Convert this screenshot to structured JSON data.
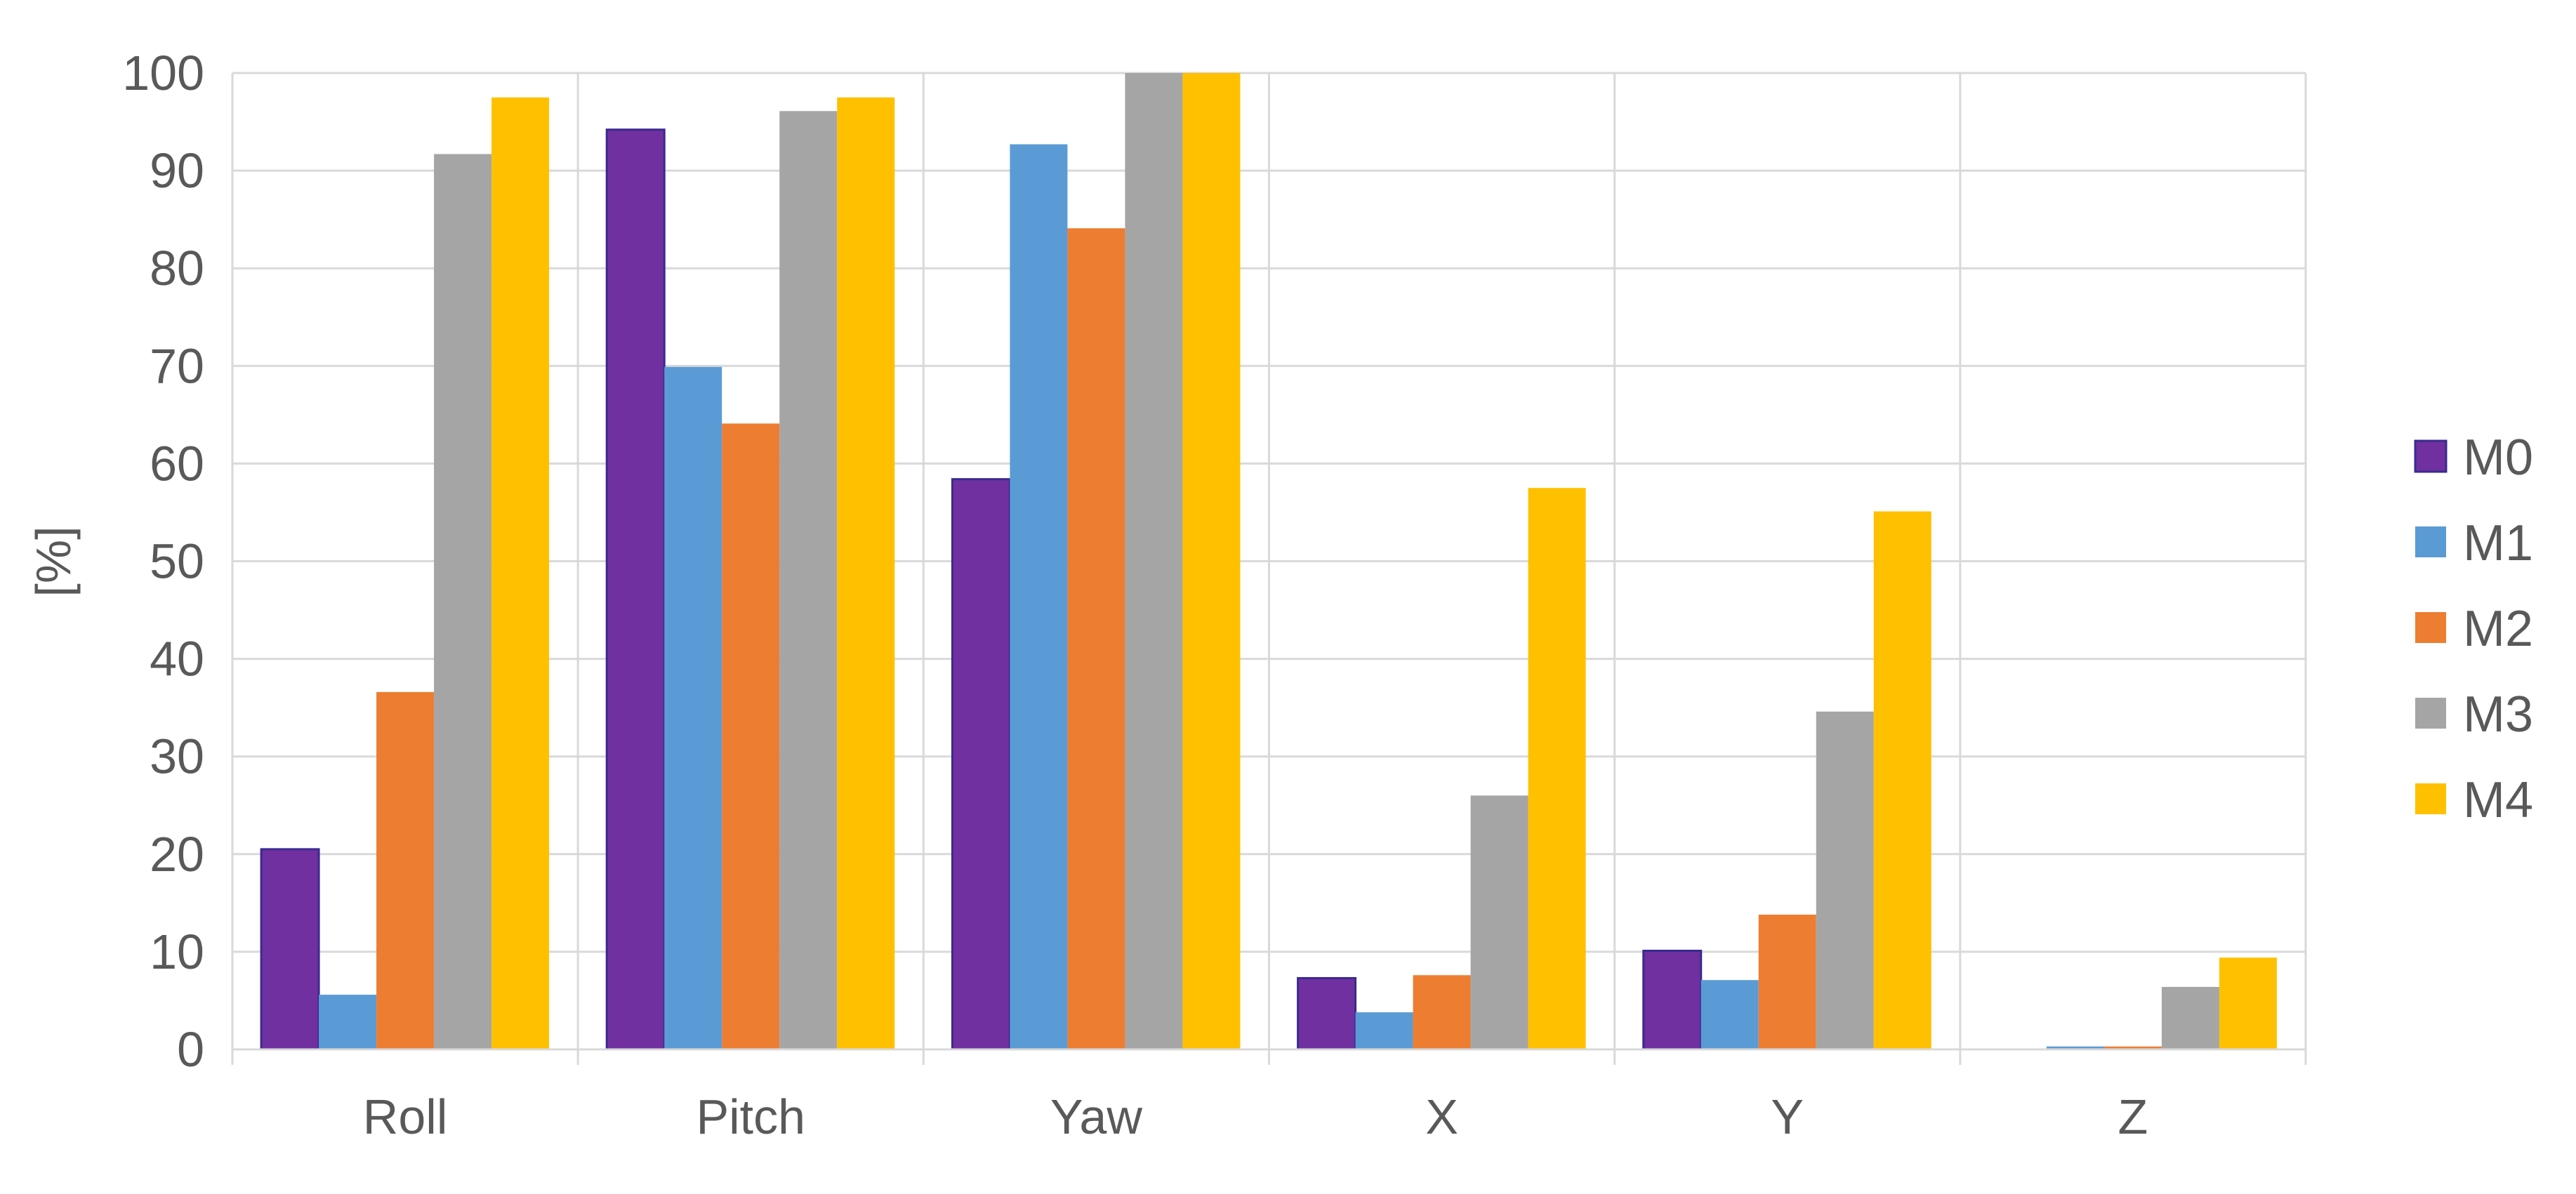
{
  "chart_data": {
    "type": "bar",
    "ylabel": "[%]",
    "xlabel": "",
    "ylim": [
      0,
      100
    ],
    "yticks": [
      "0",
      "10",
      "20",
      "30",
      "40",
      "50",
      "60",
      "70",
      "80",
      "90",
      "100"
    ],
    "grid": true,
    "legend_position": "right",
    "categories": [
      "Roll",
      "Pitch",
      "Yaw",
      "X",
      "Y",
      "Z"
    ],
    "series": [
      {
        "name": "M0",
        "color": "#7030A0",
        "values": [
          20.5,
          94.2,
          58.4,
          7.3,
          10.1,
          0
        ]
      },
      {
        "name": "M1",
        "color": "#5B9BD5",
        "values": [
          5.6,
          69.9,
          92.7,
          3.8,
          7.1,
          0.3
        ]
      },
      {
        "name": "M2",
        "color": "#ED7D31",
        "values": [
          36.6,
          64.1,
          84.1,
          7.6,
          13.8,
          0.3
        ]
      },
      {
        "name": "M3",
        "color": "#A5A5A5",
        "values": [
          91.7,
          96.1,
          100,
          26.0,
          34.6,
          6.4
        ]
      },
      {
        "name": "M4",
        "color": "#FFC000",
        "values": [
          97.5,
          97.5,
          100,
          57.5,
          55.1,
          9.4
        ]
      }
    ]
  }
}
